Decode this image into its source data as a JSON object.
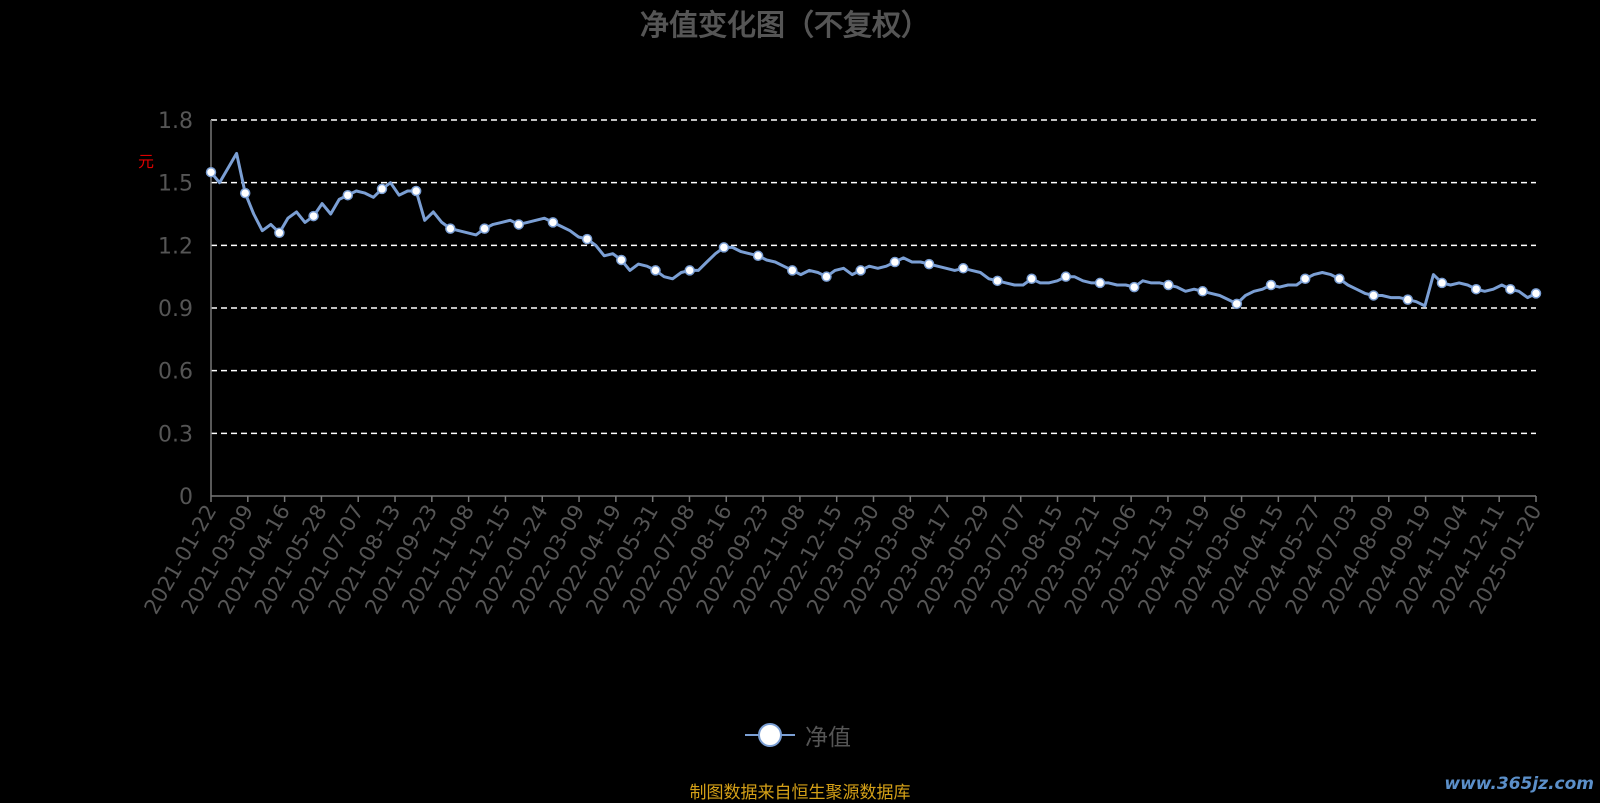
{
  "title": "净值变化图（不复权）",
  "unit_label": "元",
  "legend": {
    "label": "净值"
  },
  "source": "制图数据来自恒生聚源数据库",
  "watermark": "www.365jz.com",
  "colors": {
    "background": "#000000",
    "line": "#7b9fd4",
    "marker_fill": "#ffffff",
    "grid": "#ffffff",
    "axis_text": "#555555",
    "source_text": "#d4a017",
    "unit_text": "#dd0000"
  },
  "chart_data": {
    "type": "line",
    "title": "净值变化图（不复权）",
    "ylabel": "元",
    "ylim": [
      0,
      1.8
    ],
    "yticks": [
      0,
      0.3,
      0.6,
      0.9,
      1.2,
      1.5,
      1.8
    ],
    "grid": "horizontal-dashed",
    "legend_position": "bottom",
    "x_tick_labels": [
      "2021-01-22",
      "2021-03-09",
      "2021-04-16",
      "2021-05-28",
      "2021-07-07",
      "2021-08-13",
      "2021-09-23",
      "2021-11-08",
      "2021-12-15",
      "2022-01-24",
      "2022-03-09",
      "2022-04-19",
      "2022-05-31",
      "2022-07-08",
      "2022-08-16",
      "2022-09-23",
      "2022-11-08",
      "2022-12-15",
      "2023-01-30",
      "2023-03-08",
      "2023-04-17",
      "2023-05-29",
      "2023-07-07",
      "2023-08-15",
      "2023-09-21",
      "2023-11-06",
      "2023-12-13",
      "2024-01-19",
      "2024-03-06",
      "2024-04-15",
      "2024-05-27",
      "2024-07-03",
      "2024-08-09",
      "2024-09-19",
      "2024-11-04",
      "2024-12-11",
      "2025-01-20"
    ],
    "series": [
      {
        "name": "净值",
        "values": [
          1.55,
          1.5,
          1.57,
          1.64,
          1.45,
          1.35,
          1.27,
          1.3,
          1.26,
          1.33,
          1.36,
          1.31,
          1.34,
          1.4,
          1.35,
          1.42,
          1.44,
          1.46,
          1.45,
          1.43,
          1.47,
          1.5,
          1.44,
          1.46,
          1.46,
          1.32,
          1.36,
          1.31,
          1.28,
          1.27,
          1.26,
          1.25,
          1.28,
          1.3,
          1.31,
          1.32,
          1.3,
          1.31,
          1.32,
          1.33,
          1.31,
          1.29,
          1.27,
          1.24,
          1.23,
          1.2,
          1.15,
          1.16,
          1.13,
          1.08,
          1.11,
          1.1,
          1.08,
          1.05,
          1.04,
          1.07,
          1.08,
          1.08,
          1.12,
          1.16,
          1.19,
          1.19,
          1.17,
          1.16,
          1.15,
          1.13,
          1.12,
          1.1,
          1.08,
          1.06,
          1.08,
          1.07,
          1.05,
          1.08,
          1.09,
          1.06,
          1.08,
          1.1,
          1.09,
          1.1,
          1.12,
          1.14,
          1.12,
          1.12,
          1.11,
          1.1,
          1.09,
          1.08,
          1.09,
          1.08,
          1.07,
          1.04,
          1.03,
          1.02,
          1.01,
          1.01,
          1.04,
          1.02,
          1.02,
          1.03,
          1.05,
          1.05,
          1.03,
          1.02,
          1.02,
          1.02,
          1.01,
          1.01,
          1.0,
          1.03,
          1.02,
          1.02,
          1.01,
          1.0,
          0.98,
          0.99,
          0.98,
          0.97,
          0.96,
          0.94,
          0.92,
          0.96,
          0.98,
          0.99,
          1.01,
          1.0,
          1.01,
          1.01,
          1.04,
          1.06,
          1.07,
          1.06,
          1.04,
          1.01,
          0.99,
          0.97,
          0.96,
          0.96,
          0.95,
          0.95,
          0.94,
          0.93,
          0.91,
          1.06,
          1.02,
          1.01,
          1.02,
          1.01,
          0.99,
          0.98,
          0.99,
          1.01,
          0.99,
          0.98,
          0.95,
          0.97
        ]
      }
    ]
  }
}
